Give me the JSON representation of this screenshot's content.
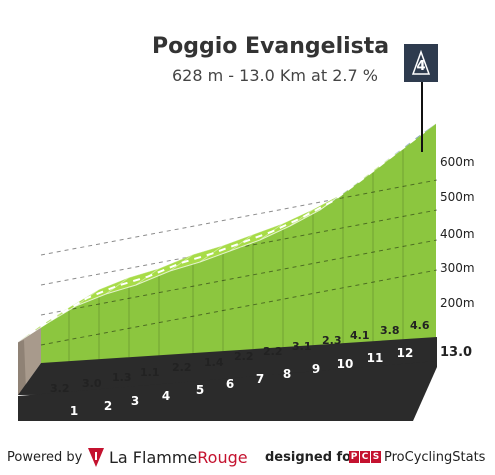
{
  "header": {
    "title": "Poggio Evangelista",
    "subtitle": "628 m - 13.0 Km at 2.7 %",
    "summit_badge": "4"
  },
  "footer": {
    "powered_by": "Powered by",
    "brand_prefix": "La Flamme",
    "brand_suffix": "Rouge",
    "designed_for": "designed for",
    "pcs_letters": [
      "P",
      "C",
      "S"
    ],
    "pcs_name": "ProCyclingStats"
  },
  "colors": {
    "green_top": "#a8dc48",
    "green_face": "#8cc63f",
    "blue_steep": "#1f5c8c",
    "base_dark": "#2b2b2b",
    "rock": "#a89a8c"
  },
  "chart_data": {
    "type": "area",
    "title": "Poggio Evangelista",
    "subtitle": "628 m - 13.0 Km at 2.7 %",
    "x_unit": "km",
    "y_unit": "m",
    "total_distance_label": "13.0",
    "km_marks": [
      "1",
      "2",
      "3",
      "4",
      "5",
      "6",
      "7",
      "8",
      "9",
      "10",
      "11",
      "12"
    ],
    "segment_gradients": [
      3.2,
      3.0,
      1.3,
      1.1,
      2.2,
      1.4,
      2.2,
      2.2,
      3.1,
      2.3,
      4.1,
      3.8,
      4.6
    ],
    "elevation_ticks": [
      "200m",
      "300m",
      "400m",
      "500m",
      "600m"
    ],
    "grid": true
  }
}
